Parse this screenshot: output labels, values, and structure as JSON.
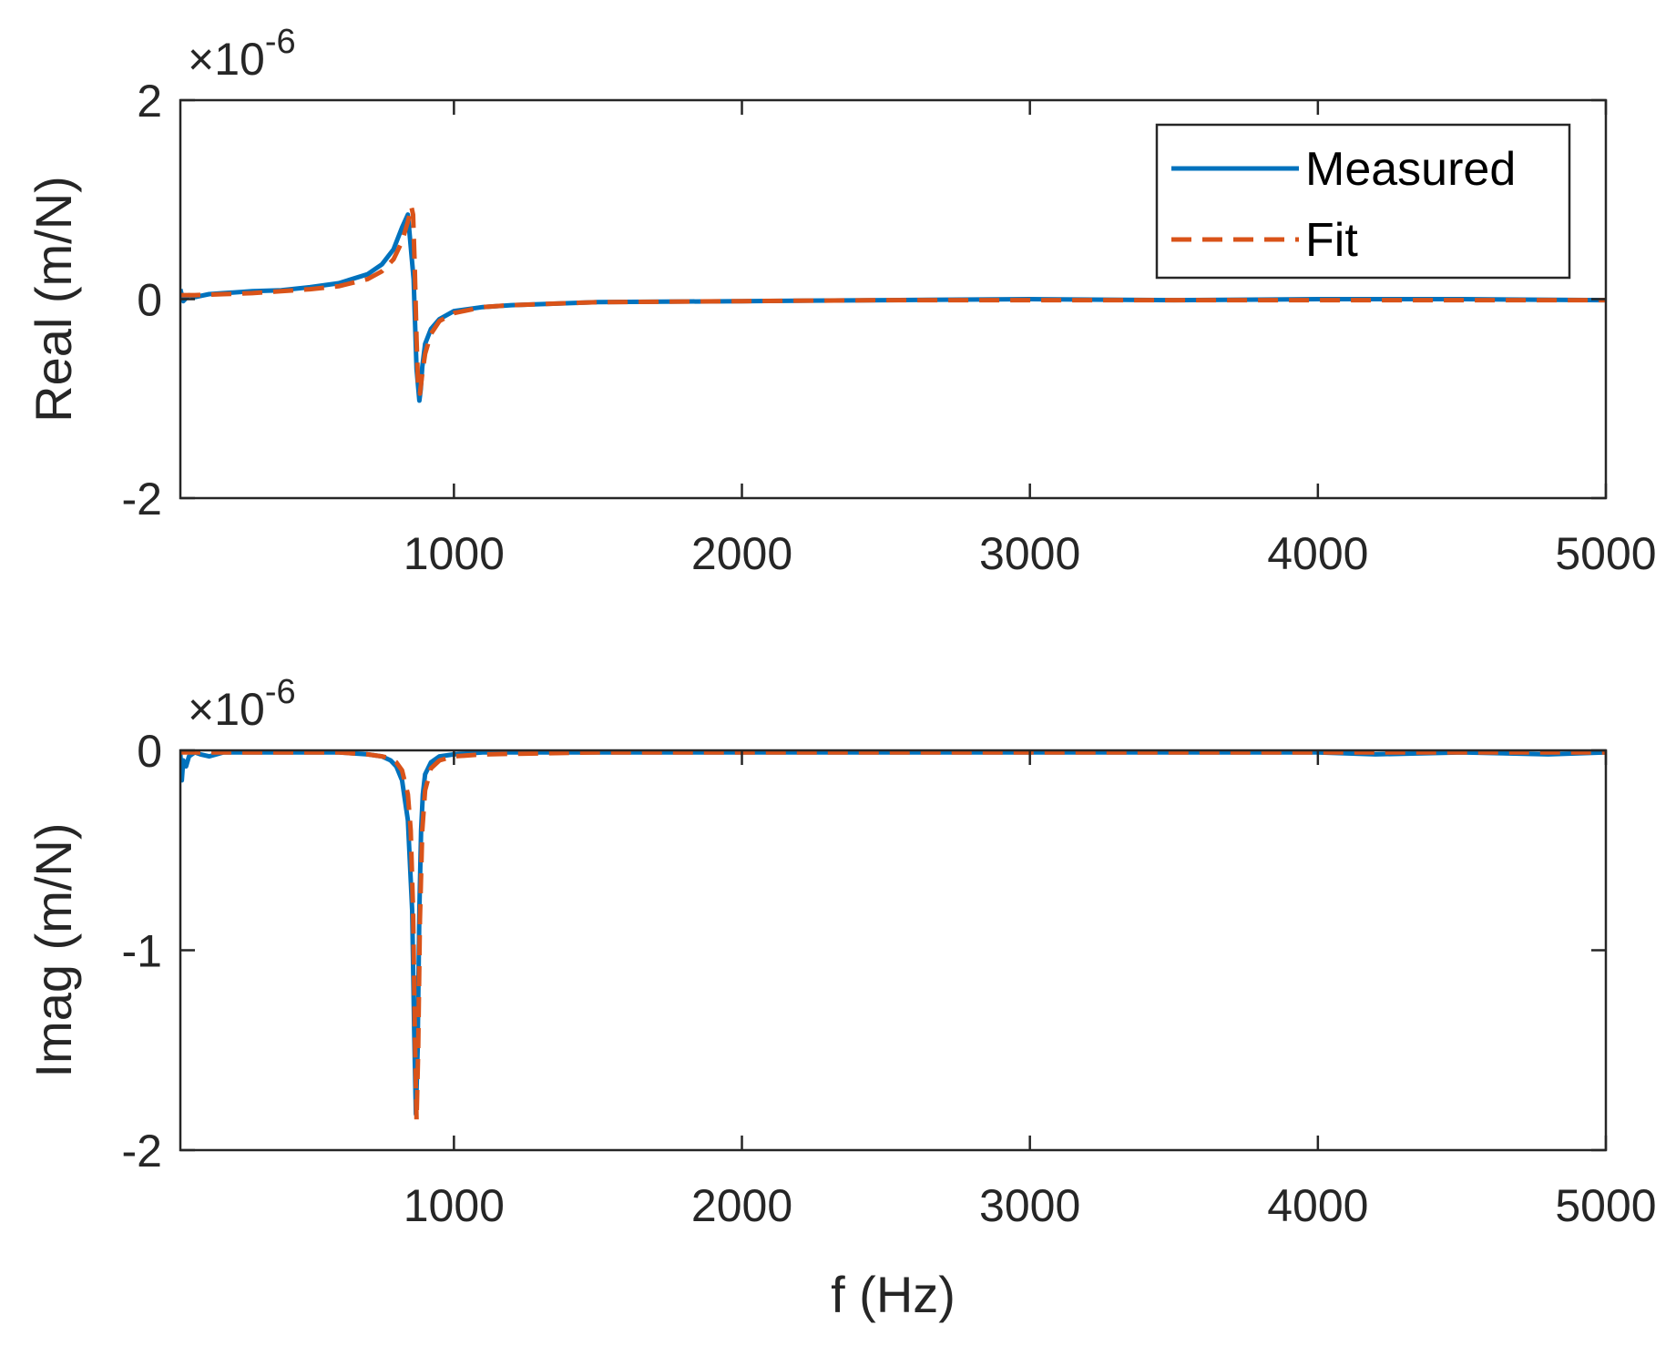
{
  "chart_data": [
    {
      "type": "line",
      "ylabel": "Real (m/N)",
      "xlabel": "",
      "y_exponent": {
        "base": "×10",
        "power": "-6"
      },
      "xlim": [
        50,
        5000
      ],
      "ylim": [
        -2,
        2
      ],
      "x_ticks": [
        "1000",
        "2000",
        "3000",
        "4000",
        "5000"
      ],
      "y_ticks": [
        "-2",
        "0",
        "2"
      ],
      "legend": {
        "position": "top-right",
        "entries": [
          "Measured",
          "Fit"
        ]
      },
      "series": [
        {
          "name": "Measured",
          "color": "#0072BD",
          "style": "solid",
          "x": [
            50,
            60,
            80,
            100,
            150,
            200,
            300,
            400,
            500,
            600,
            700,
            750,
            790,
            820,
            840,
            860,
            870,
            880,
            885,
            890,
            900,
            920,
            950,
            1000,
            1100,
            1200,
            1500,
            2000,
            2500,
            3000,
            3500,
            4000,
            4500,
            5000
          ],
          "y": [
            0.1,
            -0.02,
            0.04,
            0.02,
            0.05,
            0.06,
            0.08,
            0.09,
            0.12,
            0.16,
            0.25,
            0.35,
            0.5,
            0.72,
            0.85,
            0.2,
            -0.7,
            -1.02,
            -0.9,
            -0.68,
            -0.45,
            -0.3,
            -0.2,
            -0.12,
            -0.08,
            -0.06,
            -0.03,
            -0.02,
            -0.01,
            0.0,
            -0.01,
            0.0,
            0.0,
            -0.01
          ]
        },
        {
          "name": "Fit",
          "color": "#D95319",
          "style": "dashed",
          "x": [
            50,
            100,
            200,
            300,
            400,
            500,
            600,
            700,
            750,
            790,
            820,
            840,
            852,
            858,
            864,
            870,
            876,
            882,
            890,
            900,
            920,
            950,
            1000,
            1100,
            1200,
            1500,
            2000,
            2500,
            3000,
            3500,
            4000,
            4500,
            5000
          ],
          "y": [
            0.04,
            0.04,
            0.05,
            0.06,
            0.08,
            0.1,
            0.13,
            0.2,
            0.28,
            0.4,
            0.58,
            0.78,
            0.93,
            0.85,
            0.3,
            -0.4,
            -0.9,
            -0.95,
            -0.75,
            -0.55,
            -0.35,
            -0.22,
            -0.14,
            -0.08,
            -0.06,
            -0.03,
            -0.02,
            -0.01,
            -0.01,
            -0.01,
            -0.01,
            -0.01,
            -0.01
          ]
        }
      ]
    },
    {
      "type": "line",
      "ylabel": "Imag (m/N)",
      "xlabel": "f (Hz)",
      "y_exponent": {
        "base": "×10",
        "power": "-6"
      },
      "xlim": [
        50,
        5000
      ],
      "ylim": [
        -2,
        0
      ],
      "x_ticks": [
        "1000",
        "2000",
        "3000",
        "4000",
        "5000"
      ],
      "y_ticks": [
        "-2",
        "-1",
        "0"
      ],
      "series": [
        {
          "name": "Measured",
          "color": "#0072BD",
          "style": "solid",
          "x": [
            50,
            55,
            60,
            70,
            80,
            100,
            120,
            150,
            200,
            300,
            400,
            500,
            600,
            700,
            750,
            780,
            800,
            820,
            840,
            855,
            862,
            868,
            874,
            880,
            886,
            892,
            900,
            920,
            950,
            1000,
            1100,
            1500,
            2000,
            2500,
            3000,
            3500,
            4000,
            4200,
            4500,
            4800,
            5000
          ],
          "y": [
            -0.02,
            -0.15,
            -0.05,
            -0.08,
            -0.03,
            -0.01,
            -0.02,
            -0.03,
            -0.01,
            -0.01,
            -0.01,
            -0.01,
            -0.01,
            -0.02,
            -0.03,
            -0.05,
            -0.08,
            -0.15,
            -0.35,
            -0.8,
            -1.4,
            -1.82,
            -1.5,
            -0.8,
            -0.4,
            -0.22,
            -0.12,
            -0.06,
            -0.03,
            -0.02,
            -0.01,
            -0.01,
            -0.01,
            -0.01,
            -0.01,
            -0.01,
            -0.01,
            -0.02,
            -0.01,
            -0.02,
            -0.01
          ]
        },
        {
          "name": "Fit",
          "color": "#D95319",
          "style": "dashed",
          "x": [
            50,
            200,
            400,
            600,
            700,
            750,
            780,
            800,
            820,
            840,
            850,
            858,
            864,
            870,
            876,
            882,
            890,
            900,
            920,
            950,
            1000,
            1100,
            1500,
            2000,
            3000,
            4000,
            5000
          ],
          "y": [
            -0.01,
            -0.01,
            -0.01,
            -0.01,
            -0.02,
            -0.03,
            -0.04,
            -0.06,
            -0.1,
            -0.22,
            -0.4,
            -0.8,
            -1.4,
            -1.85,
            -1.5,
            -0.85,
            -0.4,
            -0.2,
            -0.09,
            -0.05,
            -0.03,
            -0.02,
            -0.01,
            -0.01,
            -0.01,
            -0.01,
            -0.01
          ]
        }
      ]
    }
  ]
}
